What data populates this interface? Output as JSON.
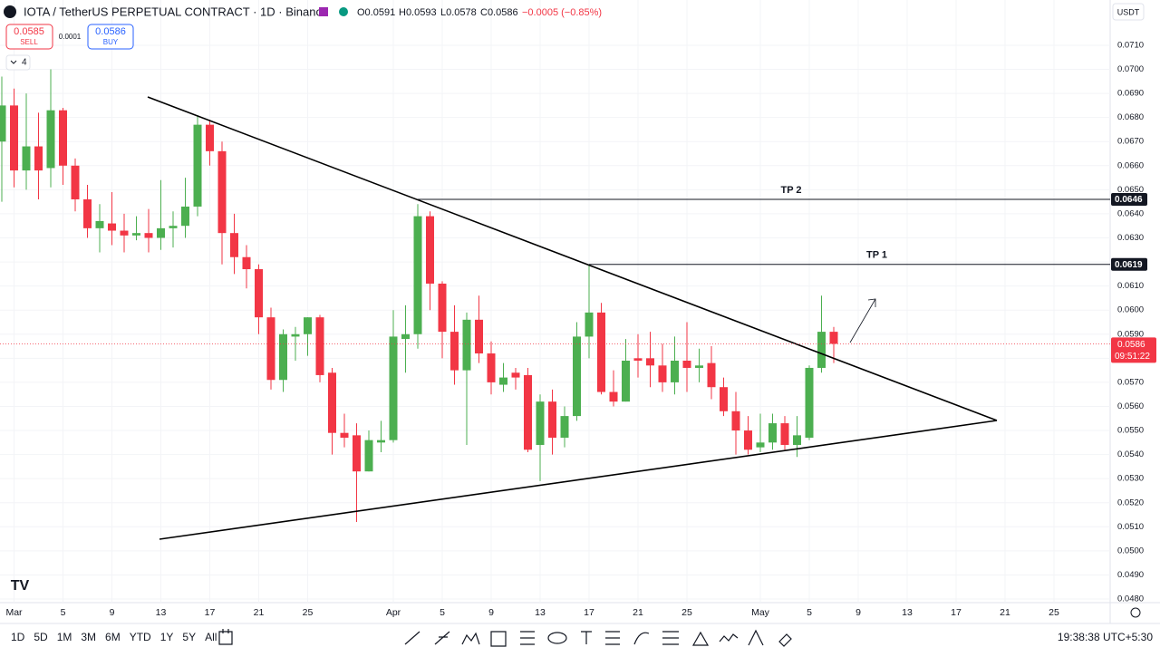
{
  "chart_data": {
    "type": "candlestick",
    "title": "IOTA / TetherUS PERPETUAL CONTRACT · 1D · Binance",
    "legend": {
      "open": "O0.0591",
      "high": "H0.0593",
      "low": "L0.0578",
      "close": "C0.0586",
      "change": "−0.0005 (−0.85%)"
    },
    "trade": {
      "sell_price": "0.0585",
      "sell_label": "SELL",
      "spread": "0.0001",
      "buy_price": "0.0586",
      "buy_label": "BUY"
    },
    "indicator_count": "4",
    "currency": "USDT",
    "up_color": "#4caf50",
    "down_color": "#f23645",
    "x": [
      "Feb 29",
      "Mar 1",
      "Mar 2",
      "Mar 3",
      "Mar 4",
      "Mar 5",
      "Mar 6",
      "Mar 7",
      "Mar 8",
      "Mar 9",
      "Mar 10",
      "Mar 11",
      "Mar 12",
      "Mar 13",
      "Mar 14",
      "Mar 15",
      "Mar 16",
      "Mar 17",
      "Mar 18",
      "Mar 19",
      "Mar 20",
      "Mar 21",
      "Mar 22",
      "Mar 23",
      "Mar 24",
      "Mar 25",
      "Mar 26",
      "Mar 27",
      "Mar 28",
      "Mar 29",
      "Mar 30",
      "Mar 31",
      "Apr 1",
      "Apr 2",
      "Apr 3",
      "Apr 4",
      "Apr 5",
      "Apr 6",
      "Apr 7",
      "Apr 8",
      "Apr 9",
      "Apr 10",
      "Apr 11",
      "Apr 12",
      "Apr 13",
      "Apr 14",
      "Apr 15",
      "Apr 16",
      "Apr 17",
      "Apr 18",
      "Apr 19",
      "Apr 20",
      "Apr 21",
      "Apr 22",
      "Apr 23",
      "Apr 24",
      "Apr 25",
      "Apr 26",
      "Apr 27",
      "Apr 28",
      "Apr 29",
      "Apr 30",
      "May 1",
      "May 2",
      "May 3",
      "May 4",
      "May 5",
      "May 6",
      "May 7"
    ],
    "open": [
      0.067,
      0.0685,
      0.0658,
      0.0668,
      0.0659,
      0.0683,
      0.066,
      0.0646,
      0.0634,
      0.0636,
      0.0633,
      0.0631,
      0.0632,
      0.063,
      0.0634,
      0.0635,
      0.0643,
      0.0677,
      0.0666,
      0.0632,
      0.0622,
      0.0617,
      0.0597,
      0.0571,
      0.0589,
      0.059,
      0.0597,
      0.0574,
      0.0549,
      0.0548,
      0.0533,
      0.0545,
      0.0546,
      0.0588,
      0.059,
      0.0639,
      0.0611,
      0.0591,
      0.0575,
      0.0596,
      0.0582,
      0.0569,
      0.0574,
      0.0573,
      0.0544,
      0.0562,
      0.0547,
      0.0556,
      0.0589,
      0.0599,
      0.0566,
      0.0562,
      0.058,
      0.058,
      0.0577,
      0.057,
      0.0579,
      0.0576,
      0.0578,
      0.0568,
      0.0558,
      0.055,
      0.0543,
      0.0545,
      0.0553,
      0.0544,
      0.0547,
      0.0576,
      0.0591
    ],
    "high": [
      0.0697,
      0.0692,
      0.069,
      0.0682,
      0.07,
      0.0684,
      0.0663,
      0.0652,
      0.0644,
      0.0649,
      0.064,
      0.0639,
      0.0642,
      0.0654,
      0.0641,
      0.0655,
      0.0681,
      0.0679,
      0.067,
      0.064,
      0.0627,
      0.0619,
      0.0601,
      0.0592,
      0.0593,
      0.0597,
      0.0598,
      0.0576,
      0.0557,
      0.0553,
      0.055,
      0.0554,
      0.06,
      0.0602,
      0.0644,
      0.0641,
      0.0612,
      0.0602,
      0.0599,
      0.0606,
      0.0587,
      0.0578,
      0.0576,
      0.0576,
      0.0565,
      0.0567,
      0.056,
      0.0595,
      0.0619,
      0.0603,
      0.0575,
      0.0588,
      0.059,
      0.0591,
      0.0586,
      0.0589,
      0.0595,
      0.0584,
      0.0585,
      0.0572,
      0.0566,
      0.0556,
      0.0557,
      0.0557,
      0.0556,
      0.0556,
      0.0577,
      0.0606,
      0.0593
    ],
    "low": [
      0.0645,
      0.0651,
      0.065,
      0.0646,
      0.0651,
      0.0652,
      0.0641,
      0.063,
      0.0624,
      0.0627,
      0.0624,
      0.0629,
      0.0624,
      0.0625,
      0.0626,
      0.063,
      0.0639,
      0.066,
      0.0619,
      0.0615,
      0.0609,
      0.059,
      0.0567,
      0.0566,
      0.0579,
      0.0581,
      0.057,
      0.054,
      0.0543,
      0.0512,
      0.0533,
      0.0541,
      0.0545,
      0.0574,
      0.0584,
      0.06,
      0.058,
      0.0569,
      0.0544,
      0.0578,
      0.0565,
      0.0566,
      0.0567,
      0.0541,
      0.0529,
      0.054,
      0.0543,
      0.0554,
      0.058,
      0.0565,
      0.056,
      0.0562,
      0.0572,
      0.0568,
      0.0566,
      0.0565,
      0.0566,
      0.057,
      0.0563,
      0.0556,
      0.054,
      0.054,
      0.0541,
      0.0542,
      0.0542,
      0.0539,
      0.0546,
      0.0574,
      0.0578
    ],
    "close": [
      0.0685,
      0.0658,
      0.0668,
      0.0658,
      0.0683,
      0.066,
      0.0646,
      0.0634,
      0.0637,
      0.0633,
      0.0631,
      0.0632,
      0.063,
      0.0634,
      0.0635,
      0.0643,
      0.0677,
      0.0666,
      0.0632,
      0.0622,
      0.0617,
      0.0597,
      0.0571,
      0.059,
      0.059,
      0.0597,
      0.0573,
      0.0549,
      0.0547,
      0.0533,
      0.0546,
      0.0546,
      0.0589,
      0.059,
      0.0639,
      0.0611,
      0.0591,
      0.0575,
      0.0596,
      0.0582,
      0.057,
      0.0572,
      0.0572,
      0.0542,
      0.0562,
      0.0547,
      0.0556,
      0.0589,
      0.0599,
      0.0566,
      0.0562,
      0.0579,
      0.0579,
      0.0577,
      0.057,
      0.0579,
      0.0576,
      0.0577,
      0.0568,
      0.0558,
      0.055,
      0.0542,
      0.0545,
      0.0553,
      0.0544,
      0.0548,
      0.0576,
      0.0591,
      0.0586
    ],
    "ylim": [
      0.04785,
      0.07145
    ],
    "yticks": [
      {
        "value": 0.048,
        "label": "0.0480"
      },
      {
        "value": 0.049,
        "label": "0.0490"
      },
      {
        "value": 0.05,
        "label": "0.0500"
      },
      {
        "value": 0.051,
        "label": "0.0510"
      },
      {
        "value": 0.052,
        "label": "0.0520"
      },
      {
        "value": 0.053,
        "label": "0.0530"
      },
      {
        "value": 0.054,
        "label": "0.0540"
      },
      {
        "value": 0.055,
        "label": "0.0550"
      },
      {
        "value": 0.056,
        "label": "0.0560"
      },
      {
        "value": 0.057,
        "label": "0.0570"
      },
      {
        "value": 0.058,
        "label": "0.0580"
      },
      {
        "value": 0.059,
        "label": "0.0590"
      },
      {
        "value": 0.06,
        "label": "0.0600"
      },
      {
        "value": 0.061,
        "label": "0.0610"
      },
      {
        "value": 0.062,
        "label": "0.0620"
      },
      {
        "value": 0.063,
        "label": "0.0630"
      },
      {
        "value": 0.064,
        "label": "0.0640"
      },
      {
        "value": 0.065,
        "label": "0.0650"
      },
      {
        "value": 0.066,
        "label": "0.0660"
      },
      {
        "value": 0.067,
        "label": "0.0670"
      },
      {
        "value": 0.068,
        "label": "0.0680"
      },
      {
        "value": 0.069,
        "label": "0.0690"
      },
      {
        "value": 0.07,
        "label": "0.0700"
      },
      {
        "value": 0.071,
        "label": "0.0710"
      }
    ],
    "xticks": [
      {
        "value": "Mar 1",
        "label": "Mar"
      },
      {
        "value": "Mar 5",
        "label": "5"
      },
      {
        "value": "Mar 9",
        "label": "9"
      },
      {
        "value": "Mar 13",
        "label": "13"
      },
      {
        "value": "Mar 17",
        "label": "17"
      },
      {
        "value": "Mar 21",
        "label": "21"
      },
      {
        "value": "Mar 25",
        "label": "25"
      },
      {
        "value": "Apr 1",
        "label": "Apr"
      },
      {
        "value": "Apr 5",
        "label": "5"
      },
      {
        "value": "Apr 9",
        "label": "9"
      },
      {
        "value": "Apr 13",
        "label": "13"
      },
      {
        "value": "Apr 17",
        "label": "17"
      },
      {
        "value": "Apr 21",
        "label": "21"
      },
      {
        "value": "Apr 25",
        "label": "25"
      },
      {
        "value": "May 1",
        "label": "May"
      },
      {
        "value": "May 5",
        "label": "5"
      },
      {
        "value": "May 9",
        "label": "9"
      },
      {
        "value": "May 13",
        "label": "13"
      },
      {
        "value": "May 17",
        "label": "17"
      },
      {
        "value": "May 21",
        "label": "21"
      },
      {
        "value": "May 25",
        "label": "25"
      }
    ],
    "levels": [
      {
        "name": "TP 2",
        "value": 0.0646,
        "start": "Apr 3"
      },
      {
        "name": "TP 1",
        "value": 0.0619,
        "start": "Apr 17"
      }
    ],
    "last_price": 0.0586,
    "countdown": "09:51:22",
    "ranges": [
      "1D",
      "5D",
      "1M",
      "3M",
      "6M",
      "YTD",
      "1Y",
      "5Y",
      "All"
    ],
    "clock": "19:38:38 UTC+5:30"
  }
}
